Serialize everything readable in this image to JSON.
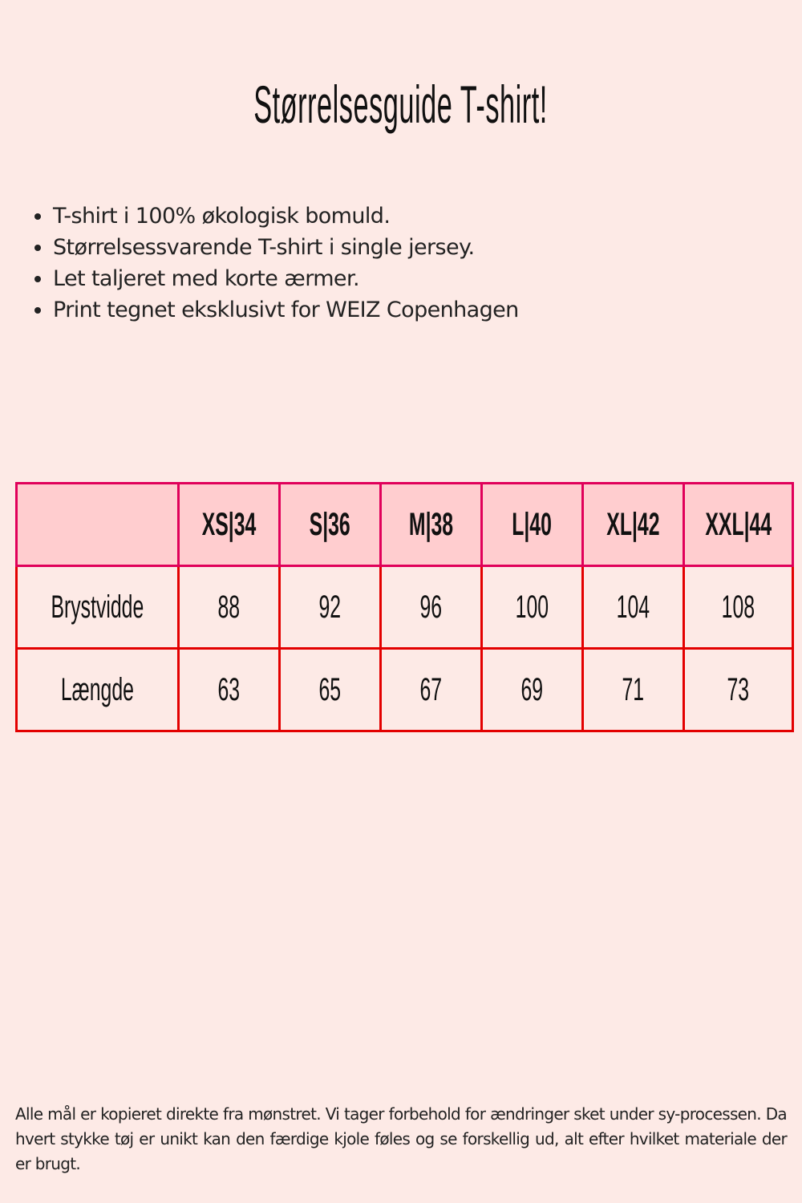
{
  "title": "Størrelsesguide T-shirt!",
  "bullets": [
    "T-shirt i 100% økologisk bomuld.",
    "Størrelsessvarende T-shirt i single jersey.",
    "Let taljeret med korte ærmer.",
    "Print tegnet eksklusivt for WEIZ Copenhagen"
  ],
  "table": {
    "columns": [
      "",
      "XS|34",
      "S|36",
      "M|38",
      "L|40",
      "XL|42",
      "XXL|44"
    ],
    "rows": [
      {
        "label": "Brystvidde",
        "values": [
          "88",
          "92",
          "96",
          "100",
          "104",
          "108"
        ]
      },
      {
        "label": "Længde",
        "values": [
          "63",
          "65",
          "67",
          "69",
          "71",
          "73"
        ]
      }
    ]
  },
  "footer": "Alle mål er kopieret direkte fra mønstret. Vi tager forbehold for ændringer sket under sy-processen. Da hvert stykke tøj er unikt kan den færdige kjole føles og se forskellig ud, alt efter hvilket materiale der er brugt.",
  "colors": {
    "background": "#fdeae6",
    "header_fill": "#ffcdcf",
    "header_border": "#e0005a",
    "body_border": "#e30000"
  }
}
